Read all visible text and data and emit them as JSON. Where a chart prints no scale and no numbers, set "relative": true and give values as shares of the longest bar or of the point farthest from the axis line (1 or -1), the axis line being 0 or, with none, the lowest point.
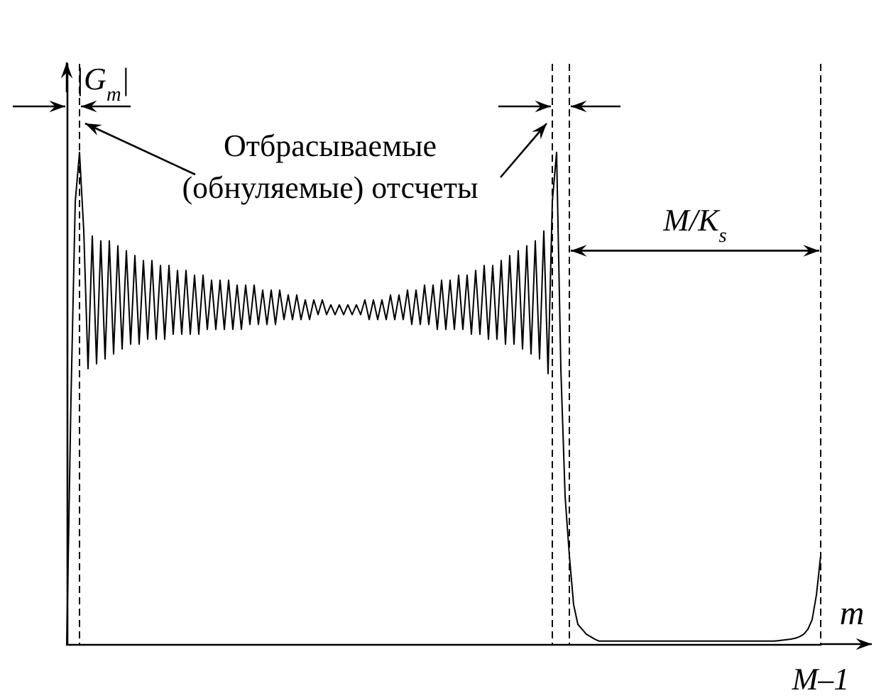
{
  "chart_data": {
    "type": "line",
    "relative": true,
    "xlabel": "m",
    "ylabel": "|G$_{m}$|",
    "grid": false,
    "marker": "none",
    "line_style": "solid",
    "categories": [
      null,
      null,
      null,
      null,
      null,
      null,
      null,
      null,
      null,
      null,
      null,
      null,
      null,
      null,
      null,
      null,
      null,
      null,
      null,
      null,
      null,
      null,
      null,
      null,
      null,
      null,
      null,
      null,
      null,
      null,
      null,
      null,
      null,
      null,
      null,
      null,
      null,
      null,
      null,
      null,
      null,
      null,
      null,
      null,
      null,
      null,
      null,
      null,
      null,
      null,
      null,
      null,
      null,
      null,
      null,
      null,
      null,
      null,
      null,
      null,
      null,
      null,
      null,
      null,
      null,
      null,
      null,
      null,
      null,
      null,
      null,
      null,
      null,
      null,
      null,
      null,
      null,
      null,
      null,
      null,
      null,
      null,
      null,
      null,
      null,
      null,
      null,
      null,
      null,
      null,
      null,
      null,
      null,
      null,
      null,
      null,
      null,
      null,
      null,
      null,
      null,
      null,
      null,
      null,
      null,
      null,
      null,
      null,
      null,
      null,
      null,
      null,
      null,
      null,
      null,
      null,
      null,
      null,
      null,
      null,
      null,
      null,
      null,
      null,
      null,
      null,
      null,
      null,
      null,
      null,
      null,
      null,
      null,
      null,
      null,
      null,
      null,
      null,
      null,
      null,
      null,
      null,
      null,
      null,
      null,
      null,
      null,
      null,
      null,
      null,
      null,
      null,
      null,
      null,
      null,
      null,
      null,
      null,
      null,
      null,
      null,
      null,
      null,
      null,
      null,
      null,
      null,
      null,
      null,
      null,
      null,
      null,
      null,
      null,
      null,
      null,
      null,
      null
    ],
    "annotations": [
      "Отбрасываемые\n(обнуляемые) отсчеты",
      "M/K$_{s}$",
      "M–1"
    ],
    "series": [
      {
        "color": "#000000",
        "values": [
          0,
          0.5,
          0.9,
          1.0,
          0.84,
          0.56,
          0.83,
          0.57,
          0.82,
          0.58,
          0.82,
          0.59,
          0.81,
          0.6,
          0.8,
          0.61,
          0.79,
          0.61,
          0.78,
          0.62,
          0.78,
          0.62,
          0.77,
          0.62,
          0.77,
          0.63,
          0.76,
          0.63,
          0.76,
          0.63,
          0.75,
          0.63,
          0.75,
          0.64,
          0.74,
          0.64,
          0.74,
          0.64,
          0.74,
          0.64,
          0.73,
          0.64,
          0.73,
          0.65,
          0.73,
          0.65,
          0.72,
          0.65,
          0.72,
          0.65,
          0.72,
          0.66,
          0.71,
          0.66,
          0.71,
          0.66,
          0.7,
          0.66,
          0.7,
          0.67,
          0.7,
          0.67,
          0.69,
          0.67,
          0.69,
          0.67,
          0.69,
          0.67,
          0.69,
          0.67,
          0.7,
          0.66,
          0.7,
          0.66,
          0.7,
          0.66,
          0.71,
          0.66,
          0.71,
          0.66,
          0.72,
          0.65,
          0.72,
          0.65,
          0.73,
          0.65,
          0.73,
          0.64,
          0.74,
          0.64,
          0.74,
          0.64,
          0.75,
          0.64,
          0.75,
          0.63,
          0.76,
          0.63,
          0.77,
          0.62,
          0.77,
          0.62,
          0.78,
          0.61,
          0.79,
          0.61,
          0.8,
          0.6,
          0.81,
          0.59,
          0.82,
          0.58,
          0.84,
          0.55,
          0.9,
          1.0,
          0.56,
          0.3,
          0.18,
          0.08,
          0.04,
          0.03,
          0.02,
          0.015,
          0.01,
          0.006,
          0.006,
          0.006,
          0.006,
          0.006,
          0.006,
          0.006,
          0.006,
          0.006,
          0.006,
          0.006,
          0.006,
          0.006,
          0.006,
          0.006,
          0.006,
          0.006,
          0.006,
          0.006,
          0.006,
          0.006,
          0.006,
          0.006,
          0.006,
          0.006,
          0.006,
          0.006,
          0.006,
          0.006,
          0.006,
          0.006,
          0.006,
          0.006,
          0.006,
          0.006,
          0.006,
          0.006,
          0.006,
          0.006,
          0.006,
          0.006,
          0.006,
          0.007,
          0.008,
          0.009,
          0.01,
          0.012,
          0.015,
          0.02,
          0.03,
          0.05,
          0.1,
          0.18
        ]
      }
    ]
  }
}
